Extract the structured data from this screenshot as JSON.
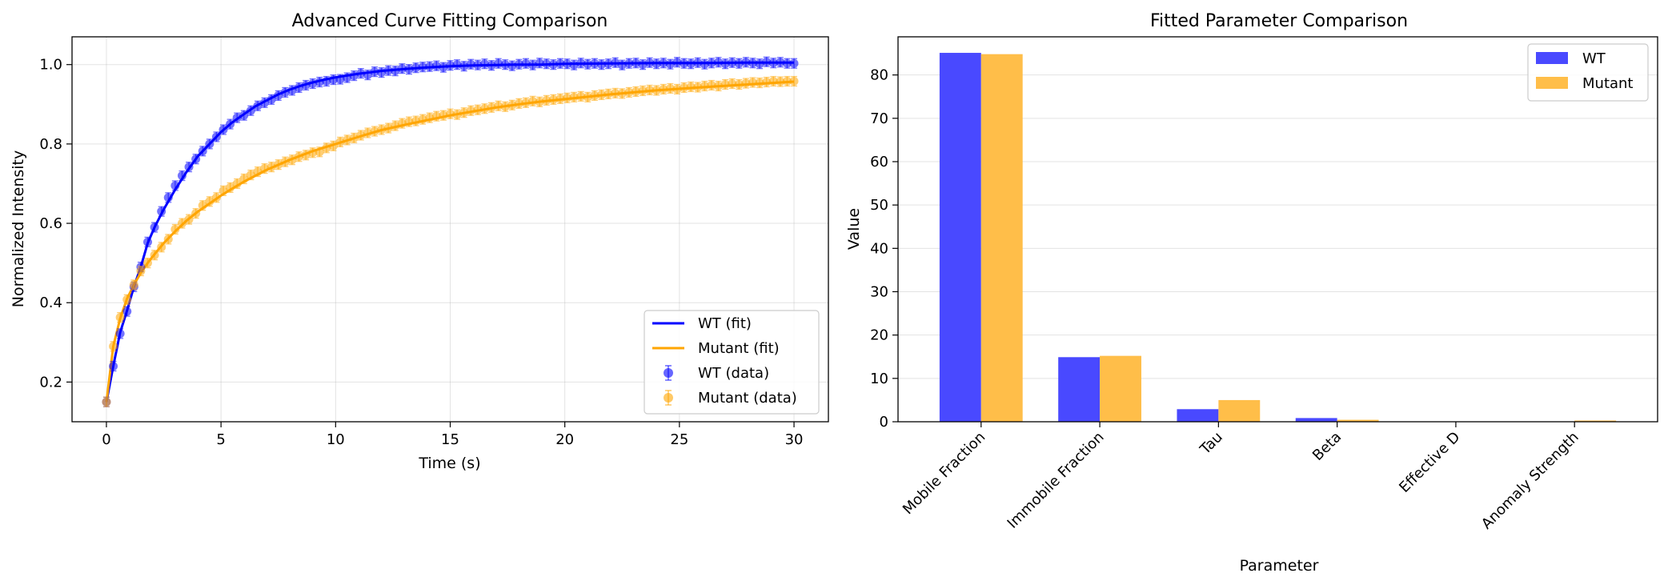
{
  "chart_data": [
    {
      "type": "line",
      "title": "Advanced Curve Fitting Comparison",
      "xlabel": "Time (s)",
      "ylabel": "Normalized Intensity",
      "xlim": [
        -1.5,
        31.5
      ],
      "ylim": [
        0.1,
        1.07
      ],
      "xticks": [
        0,
        5,
        10,
        15,
        20,
        25,
        30
      ],
      "yticks": [
        0.2,
        0.4,
        0.6,
        0.8,
        1.0
      ],
      "grid": true,
      "legend_position": "lower right",
      "legend": [
        "WT (fit)",
        "Mutant (fit)",
        "WT (data)",
        "Mutant (data)"
      ],
      "series": [
        {
          "name": "WT",
          "color": "#0000ff",
          "fit": {
            "x": [
              0,
              0.3,
              0.6,
              0.9,
              1.2,
              1.5,
              1.8,
              2.1,
              2.5,
              3,
              3.5,
              4,
              4.5,
              5,
              5.5,
              6,
              6.5,
              7,
              7.5,
              8,
              8.5,
              9,
              9.5,
              10,
              11,
              12,
              13,
              14,
              15,
              16,
              17,
              18,
              19,
              20,
              22,
              24,
              26,
              28,
              30
            ],
            "y": [
              0.15,
              0.24,
              0.325,
              0.38,
              0.44,
              0.49,
              0.55,
              0.59,
              0.635,
              0.685,
              0.73,
              0.77,
              0.8,
              0.83,
              0.855,
              0.875,
              0.895,
              0.91,
              0.925,
              0.937,
              0.947,
              0.955,
              0.962,
              0.968,
              0.977,
              0.984,
              0.989,
              0.993,
              0.996,
              0.998,
              0.999,
              1.0,
              1.0,
              1.002,
              1.003,
              1.004,
              1.004,
              1.005,
              1.005
            ]
          },
          "data": {
            "x": [
              0,
              0.3,
              0.6,
              0.9,
              1.2,
              1.5,
              1.8,
              2.1,
              2.4,
              2.7,
              3.0,
              3.3,
              3.6,
              3.9,
              4.2,
              4.5,
              4.8,
              5.1,
              5.4,
              5.7,
              6.0,
              6.3,
              6.6,
              6.9,
              7.2,
              7.5,
              7.8,
              8.1,
              8.4,
              8.7,
              9.0,
              9.3,
              9.6,
              9.9,
              10.2,
              10.5,
              10.8,
              11.1,
              11.4,
              11.7,
              12.0,
              12.3,
              12.6,
              12.9,
              13.2,
              13.5,
              13.8,
              14.1,
              14.4,
              14.7,
              15.0,
              15.3,
              15.6,
              15.9,
              16.2,
              16.5,
              16.8,
              17.1,
              17.4,
              17.7,
              18.0,
              18.3,
              18.6,
              18.9,
              19.2,
              19.5,
              19.8,
              20.1,
              20.4,
              20.7,
              21.0,
              21.3,
              21.6,
              21.9,
              22.2,
              22.5,
              22.8,
              23.1,
              23.4,
              23.7,
              24.0,
              24.3,
              24.6,
              24.9,
              25.2,
              25.5,
              25.8,
              26.1,
              26.4,
              26.7,
              27.0,
              27.3,
              27.6,
              27.9,
              28.2,
              28.5,
              28.8,
              29.1,
              29.4,
              29.7,
              30.0
            ],
            "y": [
              0.15,
              0.24,
              0.322,
              0.378,
              0.44,
              0.49,
              0.553,
              0.59,
              0.63,
              0.665,
              0.695,
              0.72,
              0.742,
              0.762,
              0.782,
              0.8,
              0.818,
              0.836,
              0.85,
              0.866,
              0.872,
              0.884,
              0.896,
              0.904,
              0.912,
              0.922,
              0.93,
              0.935,
              0.942,
              0.948,
              0.952,
              0.956,
              0.958,
              0.962,
              0.963,
              0.967,
              0.972,
              0.978,
              0.974,
              0.982,
              0.98,
              0.985,
              0.984,
              0.99,
              0.988,
              0.992,
              0.994,
              0.995,
              0.997,
              0.993,
              0.998,
              1.0,
              0.996,
              1.001,
              0.999,
              1.002,
              0.998,
              1.003,
              1.0,
              0.997,
              1.001,
              1.003,
              0.999,
              1.004,
              1.002,
              1.0,
              1.003,
              1.002,
              0.999,
              1.004,
              1.001,
              1.003,
              1.0,
              1.002,
              1.005,
              0.999,
              1.003,
              1.004,
              1.0,
              1.005,
              1.002,
              1.004,
              1.001,
              1.006,
              1.003,
              1.002,
              1.005,
              1.001,
              1.004,
              1.006,
              1.002,
              1.005,
              1.003,
              1.006,
              1.004,
              1.002,
              1.007,
              1.004,
              1.006,
              1.003,
              1.003
            ],
            "error": 0.012
          }
        },
        {
          "name": "Mutant",
          "color": "#ffa500",
          "fit": {
            "x": [
              0,
              0.3,
              0.6,
              0.9,
              1.2,
              1.5,
              1.8,
              2.1,
              2.5,
              3,
              3.5,
              4,
              4.5,
              5,
              5.5,
              6,
              7,
              8,
              9,
              10,
              11,
              12,
              13,
              14,
              15,
              16,
              17,
              18,
              19,
              20,
              22,
              24,
              26,
              28,
              30
            ],
            "y": [
              0.15,
              0.29,
              0.36,
              0.41,
              0.445,
              0.475,
              0.5,
              0.522,
              0.55,
              0.58,
              0.607,
              0.63,
              0.65,
              0.67,
              0.688,
              0.705,
              0.735,
              0.76,
              0.782,
              0.8,
              0.818,
              0.835,
              0.848,
              0.86,
              0.872,
              0.882,
              0.892,
              0.9,
              0.907,
              0.913,
              0.925,
              0.935,
              0.943,
              0.95,
              0.957
            ]
          },
          "data": {
            "x": [
              0,
              0.3,
              0.6,
              0.9,
              1.2,
              1.5,
              1.8,
              2.1,
              2.4,
              2.7,
              3.0,
              3.3,
              3.6,
              3.9,
              4.2,
              4.5,
              4.8,
              5.1,
              5.4,
              5.7,
              6.0,
              6.3,
              6.6,
              6.9,
              7.2,
              7.5,
              7.8,
              8.1,
              8.4,
              8.7,
              9.0,
              9.3,
              9.6,
              9.9,
              10.2,
              10.5,
              10.8,
              11.1,
              11.4,
              11.7,
              12.0,
              12.3,
              12.6,
              12.9,
              13.2,
              13.5,
              13.8,
              14.1,
              14.4,
              14.7,
              15.0,
              15.3,
              15.6,
              15.9,
              16.2,
              16.5,
              16.8,
              17.1,
              17.4,
              17.7,
              18.0,
              18.3,
              18.6,
              18.9,
              19.2,
              19.5,
              19.8,
              20.1,
              20.4,
              20.7,
              21.0,
              21.3,
              21.6,
              21.9,
              22.2,
              22.5,
              22.8,
              23.1,
              23.4,
              23.7,
              24.0,
              24.3,
              24.6,
              24.9,
              25.2,
              25.5,
              25.8,
              26.1,
              26.4,
              26.7,
              27.0,
              27.3,
              27.6,
              27.9,
              28.2,
              28.5,
              28.8,
              29.1,
              29.4,
              29.7,
              30.0
            ],
            "y": [
              0.15,
              0.29,
              0.363,
              0.408,
              0.445,
              0.48,
              0.5,
              0.52,
              0.54,
              0.56,
              0.585,
              0.6,
              0.61,
              0.625,
              0.645,
              0.655,
              0.665,
              0.682,
              0.69,
              0.7,
              0.712,
              0.722,
              0.73,
              0.738,
              0.742,
              0.748,
              0.755,
              0.76,
              0.768,
              0.772,
              0.778,
              0.78,
              0.79,
              0.795,
              0.805,
              0.81,
              0.815,
              0.822,
              0.828,
              0.832,
              0.836,
              0.84,
              0.846,
              0.852,
              0.856,
              0.858,
              0.862,
              0.866,
              0.87,
              0.872,
              0.876,
              0.874,
              0.879,
              0.884,
              0.886,
              0.889,
              0.892,
              0.896,
              0.894,
              0.898,
              0.902,
              0.904,
              0.908,
              0.906,
              0.91,
              0.912,
              0.914,
              0.916,
              0.918,
              0.92,
              0.918,
              0.922,
              0.924,
              0.926,
              0.928,
              0.927,
              0.93,
              0.932,
              0.934,
              0.936,
              0.935,
              0.938,
              0.94,
              0.938,
              0.942,
              0.944,
              0.943,
              0.946,
              0.948,
              0.946,
              0.95,
              0.952,
              0.95,
              0.953,
              0.955,
              0.954,
              0.956,
              0.958,
              0.957,
              0.958,
              0.958
            ],
            "error": 0.012
          }
        }
      ]
    },
    {
      "type": "bar",
      "title": "Fitted Parameter Comparison",
      "xlabel": "Parameter",
      "ylabel": "Value",
      "categories": [
        "Mobile Fraction",
        "Immobile Fraction",
        "Tau",
        "Beta",
        "Effective D",
        "Anomaly Strength"
      ],
      "ylim": [
        0,
        88.8
      ],
      "yticks": [
        0,
        10,
        20,
        30,
        40,
        50,
        60,
        70,
        80
      ],
      "grid": true,
      "grid_axis": "y",
      "legend_position": "upper right",
      "series": [
        {
          "name": "WT",
          "color": "#4949ff",
          "values": [
            85.1,
            14.9,
            2.9,
            0.85,
            0.02,
            0.02
          ]
        },
        {
          "name": "Mutant",
          "color": "#ffbe49",
          "values": [
            84.8,
            15.2,
            5.0,
            0.45,
            0.02,
            0.28
          ]
        }
      ]
    }
  ]
}
